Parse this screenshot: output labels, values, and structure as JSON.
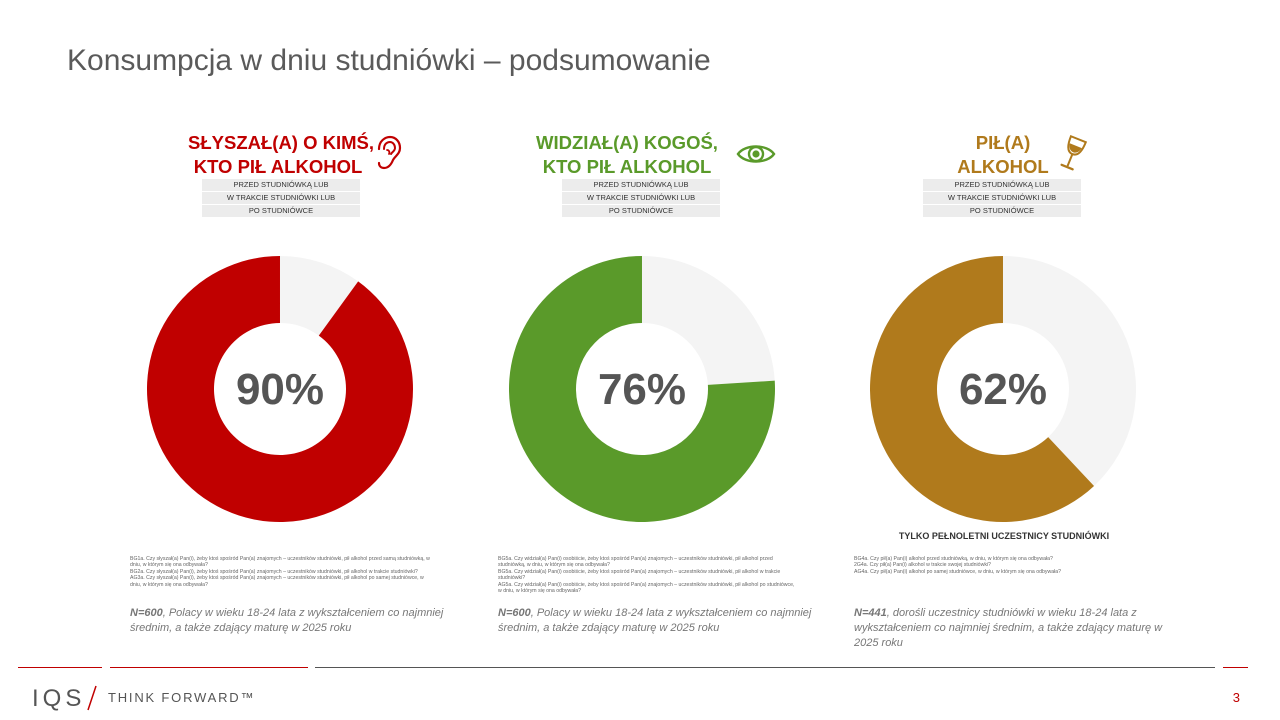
{
  "title": "Konsumpcja w dniu studniówki – podsumowanie",
  "colors": {
    "red": "#c00000",
    "green": "#5a9a2a",
    "gold": "#b07a1c",
    "track": "#f4f4f4"
  },
  "timing_pills": [
    "PRZED STUDNIÓWKĄ LUB",
    "W TRAKCIE STUDNIÓWKI LUB",
    "PO STUDNIÓWCE"
  ],
  "chart_data": [
    {
      "type": "pie",
      "title_line1": "SŁYSZAŁ(A) O KIMŚ,",
      "title_line2": "KTO PIŁ ALKOHOL",
      "icon": "ear-icon",
      "value": 90,
      "value_label": "90%",
      "color": "#c00000",
      "note": "",
      "question_lines": [
        "BG1a. Czy słyszał(a) Pan(i), żeby ktoś spośród Pan(a) znajomych – uczestników studniówki, pił alkohol przed samą studniówką, w",
        "dniu, w którym się ona odbywała?",
        "BG2a. Czy słyszał(a) Pan(i), żeby ktoś spośród Pan(a) znajomych – uczestników studniówki, pił alkohol w trakcie studniówki?",
        "AG3a. Czy słyszał(a) Pan(i), żeby ktoś spośród Pan(a) znajomych – uczestników studniówki, pił alkohol po samej studniówce, w",
        "dniu, w którym się ona odbywała?"
      ],
      "sample_n": "N=600",
      "sample_desc": ", Polacy w wieku 18-24 lata z wykształceniem co najmniej średnim, a także zdający maturę w 2025 roku"
    },
    {
      "type": "pie",
      "title_line1": "WIDZIAŁ(A) KOGOŚ,",
      "title_line2": "KTO PIŁ ALKOHOL",
      "icon": "eye-icon",
      "value": 76,
      "value_label": "76%",
      "color": "#5a9a2a",
      "note": "",
      "question_lines": [
        "BG5a. Czy widział(a) Pan(i) osobiście, żeby ktoś spośród Pan(a) znajomych – uczestników studniówki, pił alkohol przed",
        "studniówką, w dniu, w którym się ona odbywała?",
        "BG5a. Czy widział(a) Pan(i) osobiście, żeby ktoś spośród Pan(a) znajomych – uczestników studniówki, pił alkohol w trakcie",
        "studniówki?",
        "AG5a. Czy widział(a) Pan(i) osobiście, żeby ktoś spośród Pan(a) znajomych – uczestników studniówki, pił alkohol po studniówce,",
        "w dniu, w którym się ona odbywała?"
      ],
      "sample_n": "N=600",
      "sample_desc": ", Polacy w wieku 18-24 lata z wykształceniem co najmniej średnim, a także zdający maturę w 2025 roku"
    },
    {
      "type": "pie",
      "title_line1": "PIŁ(A)",
      "title_line2": "ALKOHOL",
      "icon": "wine-glass-icon",
      "value": 62,
      "value_label": "62%",
      "color": "#b07a1c",
      "note": "TYLKO PEŁNOLETNI UCZESTNICY STUDNIÓWKI",
      "question_lines": [
        "BG4a. Czy pił(a) Pan(i) alkohol przed studniówką, w dniu, w którym się ona odbywała?",
        "2G4a. Czy pił(a) Pan(i) alkohol w trakcie swojej studniówki?",
        "AG4a. Czy pił(a) Pan(i) alkohol po samej studniówce, w dniu, w którym się ona odbywała?"
      ],
      "sample_n": "N=441",
      "sample_desc": ", dorośli uczestnicy studniówki w wieku 18-24 lata z wykształceniem co najmniej średnim, a także zdający maturę w 2025 roku"
    }
  ],
  "footer": {
    "logo_text": "IQS",
    "tagline": "THINK FORWARD™",
    "page_number": "3"
  }
}
